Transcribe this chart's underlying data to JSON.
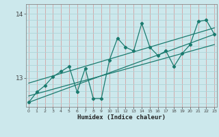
{
  "xlabel": "Humidex (Indice chaleur)",
  "bg_color": "#cce8ec",
  "line_color": "#1a7a6e",
  "vgrid_color": "#d4a0a0",
  "hgrid_color": "#aed4d8",
  "x_data": [
    0,
    1,
    2,
    3,
    4,
    5,
    6,
    7,
    8,
    9,
    10,
    11,
    12,
    13,
    14,
    15,
    16,
    17,
    18,
    19,
    20,
    21,
    22,
    23
  ],
  "y_data": [
    12.62,
    12.78,
    12.88,
    13.02,
    13.1,
    13.18,
    12.78,
    13.15,
    12.68,
    12.68,
    13.28,
    13.62,
    13.48,
    13.42,
    13.85,
    13.48,
    13.35,
    13.42,
    13.18,
    13.38,
    13.52,
    13.88,
    13.9,
    13.68
  ],
  "ylim": [
    12.55,
    14.15
  ],
  "xlim": [
    -0.3,
    23.3
  ],
  "yticks": [
    13,
    14
  ],
  "xticks": [
    0,
    1,
    2,
    3,
    4,
    5,
    6,
    7,
    8,
    9,
    10,
    11,
    12,
    13,
    14,
    15,
    16,
    17,
    18,
    19,
    20,
    21,
    22,
    23
  ],
  "trend_lines": [
    [
      12.62,
      13.68
    ],
    [
      12.72,
      13.52
    ],
    [
      12.92,
      13.78
    ]
  ]
}
